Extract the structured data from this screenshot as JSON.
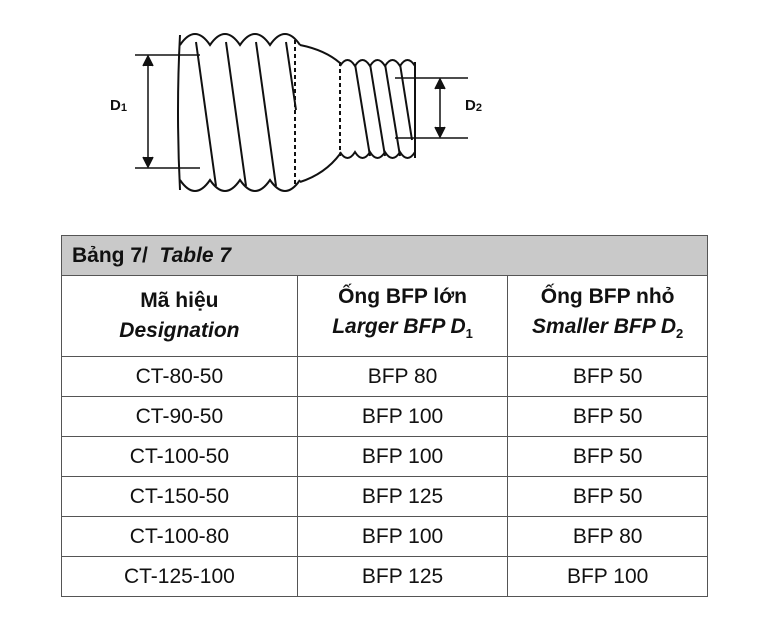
{
  "diagram": {
    "d1": {
      "letter": "D",
      "sub": "1"
    },
    "d2": {
      "letter": "D",
      "sub": "2"
    }
  },
  "table": {
    "caption": {
      "vi": "Bảng 7/",
      "en": "Table 7"
    },
    "columns": [
      {
        "vi": "Mã hiệu",
        "en": "Designation",
        "sub": null
      },
      {
        "vi": "Ống BFP lớn",
        "en": "Larger BFP D",
        "sub": "1"
      },
      {
        "vi": "Ống BFP nhỏ",
        "en": "Smaller BFP D",
        "sub": "2"
      }
    ],
    "rows": [
      [
        "CT-80-50",
        "BFP 80",
        "BFP 50"
      ],
      [
        "CT-90-50",
        "BFP 100",
        "BFP 50"
      ],
      [
        "CT-100-50",
        "BFP 100",
        "BFP 50"
      ],
      [
        "CT-150-50",
        "BFP 125",
        "BFP 50"
      ],
      [
        "CT-100-80",
        "BFP 100",
        "BFP 80"
      ],
      [
        "CT-125-100",
        "BFP 125",
        "BFP 100"
      ]
    ]
  }
}
